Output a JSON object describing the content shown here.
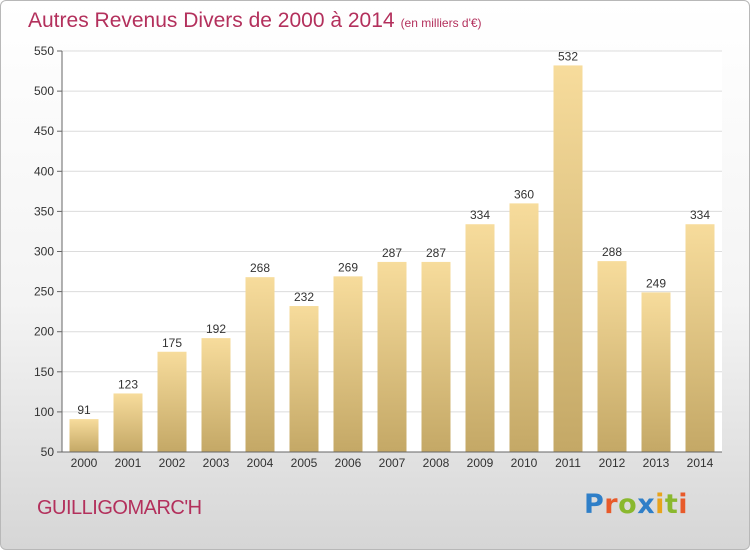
{
  "chart_data": {
    "type": "bar",
    "title": "Autres Revenus Divers de 2000 à 2014",
    "unit_note": "(en milliers d'€)",
    "categories": [
      "2000",
      "2001",
      "2002",
      "2003",
      "2004",
      "2005",
      "2006",
      "2007",
      "2008",
      "2009",
      "2010",
      "2011",
      "2012",
      "2013",
      "2014"
    ],
    "values": [
      91,
      123,
      175,
      192,
      268,
      232,
      269,
      287,
      287,
      334,
      360,
      532,
      288,
      249,
      334
    ],
    "ylim": [
      50,
      550
    ],
    "yticks": [
      50,
      100,
      150,
      200,
      250,
      300,
      350,
      400,
      450,
      500,
      550
    ],
    "grid": true,
    "xlabel": "",
    "ylabel": ""
  },
  "commune": "GUILLIGOMARC'H",
  "logo": {
    "letters": [
      "P",
      "r",
      "o",
      "x",
      "i",
      "t",
      "i"
    ],
    "colors": [
      "#2f7fc8",
      "#e85a2a",
      "#8ab82e",
      "#2f7fc8",
      "#e8a31c",
      "#8ab82e",
      "#e85a2a"
    ]
  },
  "colors": {
    "bar_top": "#f7dc9c",
    "bar_bottom": "#c4a866",
    "accent": "#b3305c"
  }
}
